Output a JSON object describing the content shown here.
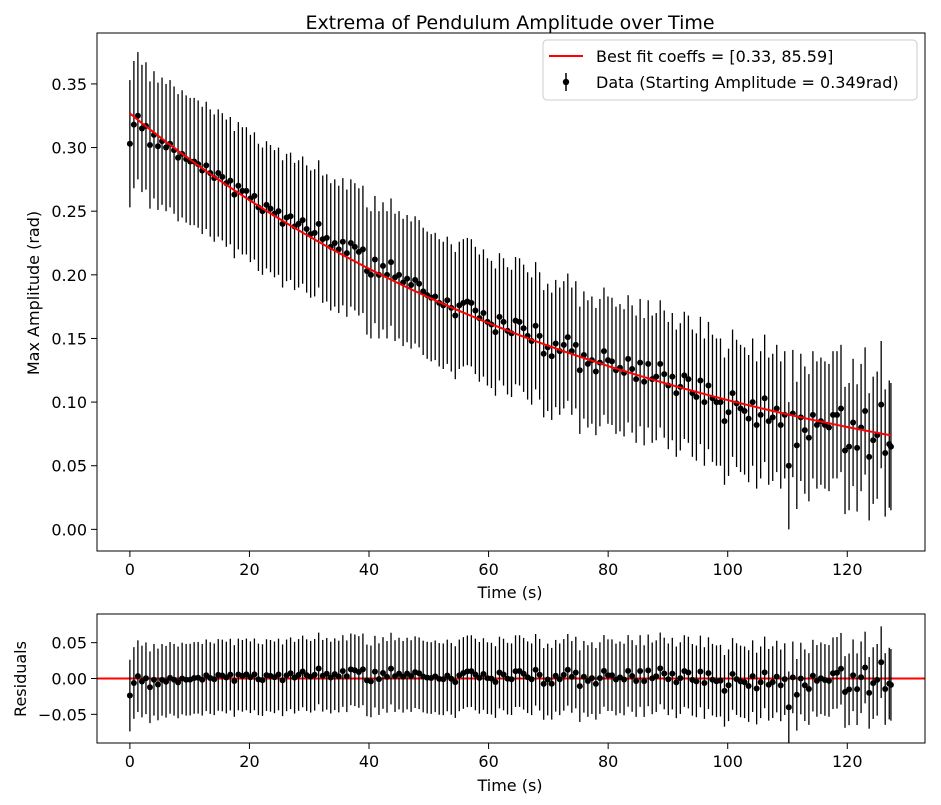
{
  "chart_data": [
    {
      "type": "scatter",
      "title": "Extrema of Pendulum Amplitude over Time",
      "xlabel": "Time (s)",
      "ylabel": "Max Amplitude (rad)",
      "xlim": [
        -5.5,
        133
      ],
      "ylim": [
        -0.017,
        0.39
      ],
      "xticks": [
        0,
        20,
        40,
        60,
        80,
        100,
        120
      ],
      "yticks": [
        0.0,
        0.05,
        0.1,
        0.15,
        0.2,
        0.25,
        0.3,
        0.35
      ],
      "ytick_labels": [
        "0.00",
        "0.05",
        "0.10",
        "0.15",
        "0.20",
        "0.25",
        "0.30",
        "0.35"
      ],
      "legend_position": "top-right",
      "series": [
        {
          "name": "Best fit coeffs = [0.33, 85.59]",
          "kind": "line",
          "color": "#ff0000",
          "model": "exponential decay",
          "coeffs": [
            0.3268,
            85.59
          ],
          "x_range": [
            0,
            127.3
          ]
        },
        {
          "name": "Data (Starting Amplitude = 0.349rad)",
          "kind": "errorbar",
          "color": "#000000",
          "points": [
            [
              0.0,
              0.303
            ],
            [
              0.67,
              0.318
            ],
            [
              1.34,
              0.325
            ],
            [
              2.02,
              0.315
            ],
            [
              2.69,
              0.317
            ],
            [
              3.36,
              0.302
            ],
            [
              4.03,
              0.31
            ],
            [
              4.7,
              0.301
            ],
            [
              5.38,
              0.305
            ],
            [
              6.05,
              0.3
            ],
            [
              6.72,
              0.303
            ],
            [
              7.39,
              0.298
            ],
            [
              8.06,
              0.292
            ],
            [
              8.74,
              0.295
            ],
            [
              9.41,
              0.291
            ],
            [
              10.08,
              0.289
            ],
            [
              10.75,
              0.289
            ],
            [
              11.42,
              0.287
            ],
            [
              12.1,
              0.282
            ],
            [
              12.77,
              0.286
            ],
            [
              13.44,
              0.28
            ],
            [
              14.11,
              0.276
            ],
            [
              14.78,
              0.28
            ],
            [
              15.46,
              0.277
            ],
            [
              16.13,
              0.272
            ],
            [
              16.8,
              0.274
            ],
            [
              17.47,
              0.263
            ],
            [
              18.14,
              0.27
            ],
            [
              18.82,
              0.266
            ],
            [
              19.49,
              0.266
            ],
            [
              20.16,
              0.26
            ],
            [
              20.83,
              0.262
            ],
            [
              21.5,
              0.253
            ],
            [
              22.18,
              0.25
            ],
            [
              22.85,
              0.255
            ],
            [
              23.52,
              0.252
            ],
            [
              24.19,
              0.248
            ],
            [
              24.86,
              0.25
            ],
            [
              25.54,
              0.24
            ],
            [
              26.21,
              0.245
            ],
            [
              26.88,
              0.246
            ],
            [
              27.55,
              0.238
            ],
            [
              28.22,
              0.24
            ],
            [
              28.9,
              0.243
            ],
            [
              29.57,
              0.236
            ],
            [
              30.24,
              0.232
            ],
            [
              30.91,
              0.233
            ],
            [
              31.58,
              0.24
            ],
            [
              32.26,
              0.228
            ],
            [
              32.93,
              0.229
            ],
            [
              33.6,
              0.222
            ],
            [
              34.27,
              0.225
            ],
            [
              34.94,
              0.22
            ],
            [
              35.62,
              0.226
            ],
            [
              36.29,
              0.217
            ],
            [
              36.96,
              0.225
            ],
            [
              37.63,
              0.222
            ],
            [
              38.3,
              0.218
            ],
            [
              38.98,
              0.22
            ],
            [
              39.65,
              0.203
            ],
            [
              40.32,
              0.2
            ],
            [
              40.99,
              0.212
            ],
            [
              41.66,
              0.2
            ],
            [
              42.34,
              0.207
            ],
            [
              43.01,
              0.2
            ],
            [
              43.68,
              0.21
            ],
            [
              44.35,
              0.198
            ],
            [
              45.02,
              0.2
            ],
            [
              45.7,
              0.194
            ],
            [
              46.37,
              0.197
            ],
            [
              47.04,
              0.192
            ],
            [
              47.71,
              0.196
            ],
            [
              48.38,
              0.193
            ],
            [
              49.06,
              0.187
            ],
            [
              49.73,
              0.184
            ],
            [
              50.4,
              0.182
            ],
            [
              51.07,
              0.183
            ],
            [
              51.74,
              0.178
            ],
            [
              52.42,
              0.176
            ],
            [
              53.09,
              0.18
            ],
            [
              53.76,
              0.174
            ],
            [
              54.43,
              0.168
            ],
            [
              55.1,
              0.176
            ],
            [
              55.78,
              0.178
            ],
            [
              56.45,
              0.179
            ],
            [
              57.12,
              0.178
            ],
            [
              57.79,
              0.172
            ],
            [
              58.46,
              0.166
            ],
            [
              59.14,
              0.17
            ],
            [
              59.81,
              0.163
            ],
            [
              60.48,
              0.161
            ],
            [
              61.15,
              0.155
            ],
            [
              61.82,
              0.167
            ],
            [
              62.5,
              0.163
            ],
            [
              63.17,
              0.156
            ],
            [
              63.84,
              0.154
            ],
            [
              64.51,
              0.164
            ],
            [
              65.18,
              0.163
            ],
            [
              65.86,
              0.158
            ],
            [
              66.53,
              0.152
            ],
            [
              67.2,
              0.148
            ],
            [
              67.87,
              0.16
            ],
            [
              68.54,
              0.152
            ],
            [
              69.22,
              0.138
            ],
            [
              69.89,
              0.143
            ],
            [
              70.56,
              0.136
            ],
            [
              71.23,
              0.146
            ],
            [
              71.9,
              0.14
            ],
            [
              72.58,
              0.145
            ],
            [
              73.25,
              0.151
            ],
            [
              73.92,
              0.14
            ],
            [
              74.59,
              0.145
            ],
            [
              75.26,
              0.125
            ],
            [
              75.94,
              0.137
            ],
            [
              76.61,
              0.13
            ],
            [
              77.28,
              0.133
            ],
            [
              77.95,
              0.124
            ],
            [
              78.62,
              0.131
            ],
            [
              79.3,
              0.14
            ],
            [
              79.97,
              0.133
            ],
            [
              80.64,
              0.132
            ],
            [
              81.31,
              0.125
            ],
            [
              81.98,
              0.127
            ],
            [
              82.66,
              0.123
            ],
            [
              83.34,
              0.134
            ],
            [
              84.01,
              0.126
            ],
            [
              84.68,
              0.118
            ],
            [
              85.35,
              0.131
            ],
            [
              86.02,
              0.116
            ],
            [
              86.7,
              0.13
            ],
            [
              87.37,
              0.118
            ],
            [
              88.04,
              0.12
            ],
            [
              88.71,
              0.13
            ],
            [
              89.38,
              0.122
            ],
            [
              90.06,
              0.113
            ],
            [
              90.73,
              0.12
            ],
            [
              91.4,
              0.107
            ],
            [
              92.07,
              0.112
            ],
            [
              92.74,
              0.121
            ],
            [
              93.42,
              0.118
            ],
            [
              94.09,
              0.107
            ],
            [
              94.76,
              0.104
            ],
            [
              95.43,
              0.117
            ],
            [
              96.1,
              0.1
            ],
            [
              96.78,
              0.113
            ],
            [
              97.45,
              0.103
            ],
            [
              98.12,
              0.1
            ],
            [
              98.79,
              0.1
            ],
            [
              99.46,
              0.085
            ],
            [
              100.14,
              0.092
            ],
            [
              100.81,
              0.107
            ],
            [
              101.48,
              0.099
            ],
            [
              102.15,
              0.095
            ],
            [
              102.82,
              0.093
            ],
            [
              103.5,
              0.087
            ],
            [
              104.17,
              0.1
            ],
            [
              104.84,
              0.082
            ],
            [
              105.51,
              0.09
            ],
            [
              106.18,
              0.103
            ],
            [
              106.86,
              0.085
            ],
            [
              107.53,
              0.088
            ],
            [
              108.2,
              0.095
            ],
            [
              108.87,
              0.082
            ],
            [
              109.54,
              0.09
            ],
            [
              110.22,
              0.05
            ],
            [
              110.89,
              0.091
            ],
            [
              111.56,
              0.066
            ],
            [
              112.23,
              0.088
            ],
            [
              112.9,
              0.078
            ],
            [
              113.58,
              0.072
            ],
            [
              114.25,
              0.09
            ],
            [
              114.92,
              0.082
            ],
            [
              115.59,
              0.085
            ],
            [
              116.26,
              0.082
            ],
            [
              116.94,
              0.08
            ],
            [
              117.61,
              0.09
            ],
            [
              118.28,
              0.09
            ],
            [
              118.95,
              0.095
            ],
            [
              119.62,
              0.062
            ],
            [
              120.3,
              0.065
            ],
            [
              120.97,
              0.084
            ],
            [
              121.64,
              0.064
            ],
            [
              122.31,
              0.08
            ],
            [
              122.98,
              0.093
            ],
            [
              123.66,
              0.057
            ],
            [
              124.33,
              0.07
            ],
            [
              125.0,
              0.074
            ],
            [
              125.67,
              0.098
            ],
            [
              126.34,
              0.06
            ],
            [
              127.02,
              0.067
            ],
            [
              127.3,
              0.065
            ]
          ],
          "yerr": 0.05
        }
      ]
    },
    {
      "type": "scatter",
      "title": "",
      "xlabel": "Time (s)",
      "ylabel": "Residuals",
      "xlim": [
        -5.5,
        133
      ],
      "ylim": [
        -0.09,
        0.09
      ],
      "xticks": [
        0,
        20,
        40,
        60,
        80,
        100,
        120
      ],
      "yticks": [
        -0.05,
        0.0,
        0.05
      ],
      "ytick_labels": [
        "−0.05",
        "0.00",
        "0.05"
      ],
      "series": [
        {
          "kind": "hline",
          "color": "#ff0000",
          "y": 0.0
        },
        {
          "kind": "errorbar",
          "color": "#000000",
          "yerr": 0.05,
          "source": "residuals of Data series against best-fit curve"
        }
      ]
    }
  ]
}
